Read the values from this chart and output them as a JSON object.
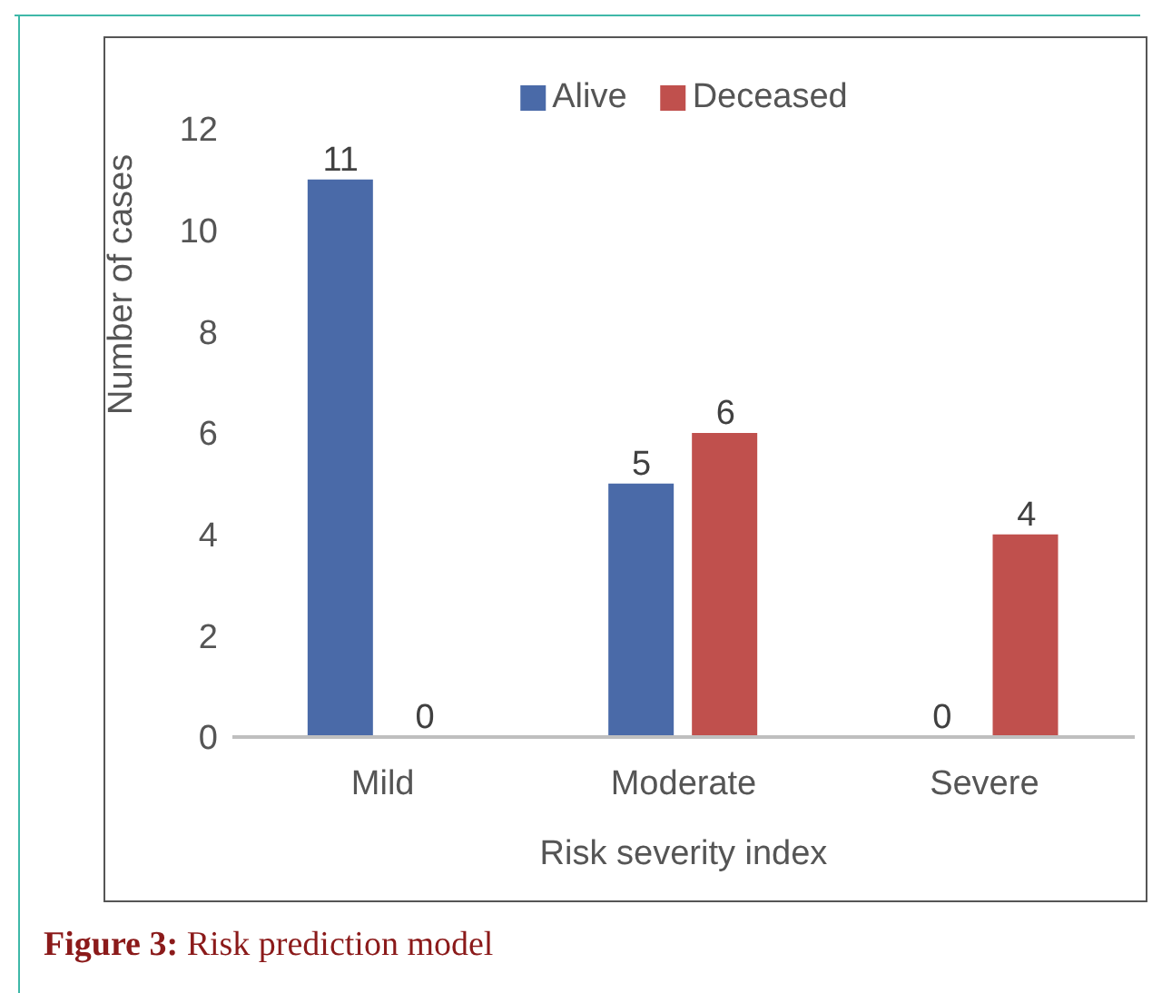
{
  "chart_data": {
    "type": "bar",
    "xlabel": "Risk severity index",
    "ylabel": "Number of cases",
    "categories": [
      "Mild",
      "Moderate",
      "Severe"
    ],
    "series": [
      {
        "name": "Alive",
        "color": "#4a6aa8",
        "values": [
          11,
          5,
          0
        ]
      },
      {
        "name": "Deceased",
        "color": "#c0504d",
        "values": [
          0,
          6,
          4
        ]
      }
    ],
    "ylim": [
      0,
      12
    ],
    "yticks": [
      0,
      2,
      4,
      6,
      8,
      10,
      12
    ],
    "grid": false,
    "legend": "top",
    "data_labels": true,
    "annotations": [
      "Figure 3: Risk prediction model"
    ]
  }
}
